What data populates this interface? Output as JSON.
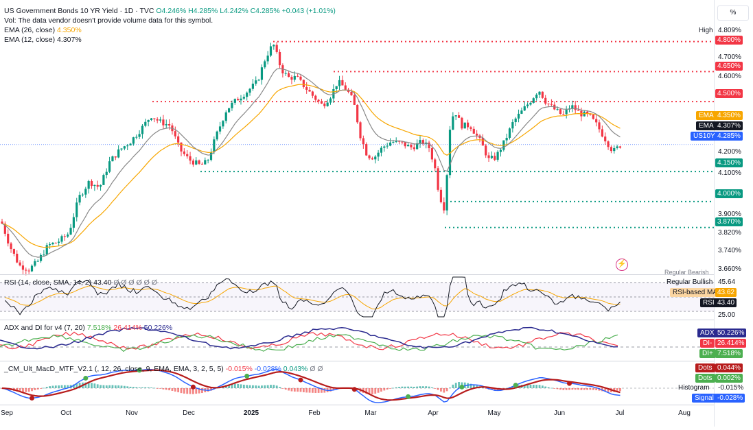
{
  "header": {
    "title": "US Government Bonds 10 YR Yield · 1D · TVC",
    "ohlc": "O4.246% H4.285% L4.242% C4.285% +0.043 (+1.01%)",
    "vol_note": "Vol: The data vendor doesn't provide volume data for this symbol.",
    "ema26_label": "EMA (26, close)",
    "ema26_value": "4.350%",
    "ema12_label": "EMA (12, close)",
    "ema12_value": "4.307%"
  },
  "price_axis": {
    "percent_button": "%",
    "ticks": [
      "4.700%",
      "4.600%",
      "4.200%",
      "4.100%",
      "3.900%",
      "3.820%",
      "3.740%",
      "3.660%"
    ],
    "high_label": "High",
    "high_value": "4.809%",
    "levels": [
      {
        "value": "4.800%",
        "color": "#f23645"
      },
      {
        "value": "4.650%",
        "color": "#f23645"
      },
      {
        "value": "4.500%",
        "color": "#f23645"
      },
      {
        "value": "4.150%",
        "color": "#089981"
      },
      {
        "value": "4.000%",
        "color": "#089981"
      },
      {
        "value": "3.870%",
        "color": "#089981"
      }
    ],
    "ema_tag": {
      "label": "EMA",
      "value": "4.350%"
    },
    "ema2_tag": {
      "label": "EMA",
      "value": "4.307%"
    },
    "symbol_tag": {
      "label": "US10Y",
      "value": "4.285%"
    }
  },
  "rsi": {
    "legend": "RSI (14, close, SMA, 14, 2) 43.40",
    "legend_tail": "Ø Ø Ø Ø Ø Ø",
    "regular_bullish": "Regular Bullish",
    "regular_bearish": "Regular Bearish",
    "ticks": [
      "45.64",
      "25.00"
    ],
    "ma_label": "RSI-based MA",
    "ma_value": "43.62",
    "rsi_label": "RSI",
    "rsi_value": "43.40"
  },
  "adx": {
    "legend": "ADX and DI for v4 (7, 20)",
    "v1": "7.518%",
    "v2": "26.414%",
    "v3": "50.226%",
    "adx_label": "ADX",
    "adx_value": "50.226%",
    "dim_label": "DI-",
    "dim_value": "26.414%",
    "dip_label": "DI+",
    "dip_value": "7.518%"
  },
  "macd": {
    "legend": "_CM_Ult_MacD_MTF_V2.1 (, 12, 26, close, 9, EMA, EMA, 3, 2, 5, 5)",
    "v1": "-0.015%",
    "v2": "-0.028%",
    "v3": "0.043%",
    "tail": "Ø Ø",
    "dots1_label": "Dots",
    "dots1_value": "0.044%",
    "dots2_label": "Dots",
    "dots2_value": "0.002%",
    "hist_label": "Histogram",
    "hist_value": "-0.015%",
    "signal_label": "Signal",
    "signal_value": "-0.028%"
  },
  "x_axis": {
    "labels": [
      "Sep",
      "Oct",
      "Nov",
      "Dec",
      "2025",
      "Feb",
      "Mar",
      "Apr",
      "May",
      "Jun",
      "Jul",
      "Aug"
    ]
  },
  "colors": {
    "up": "#089981",
    "down": "#f23645",
    "ema26": "#f7a600",
    "ema12": "#888888",
    "adx": "#2a2a8f",
    "di_minus": "#f23645",
    "di_plus": "#4caf50",
    "macd_line": "#2962ff",
    "signal_line": "#b71c1c"
  }
}
